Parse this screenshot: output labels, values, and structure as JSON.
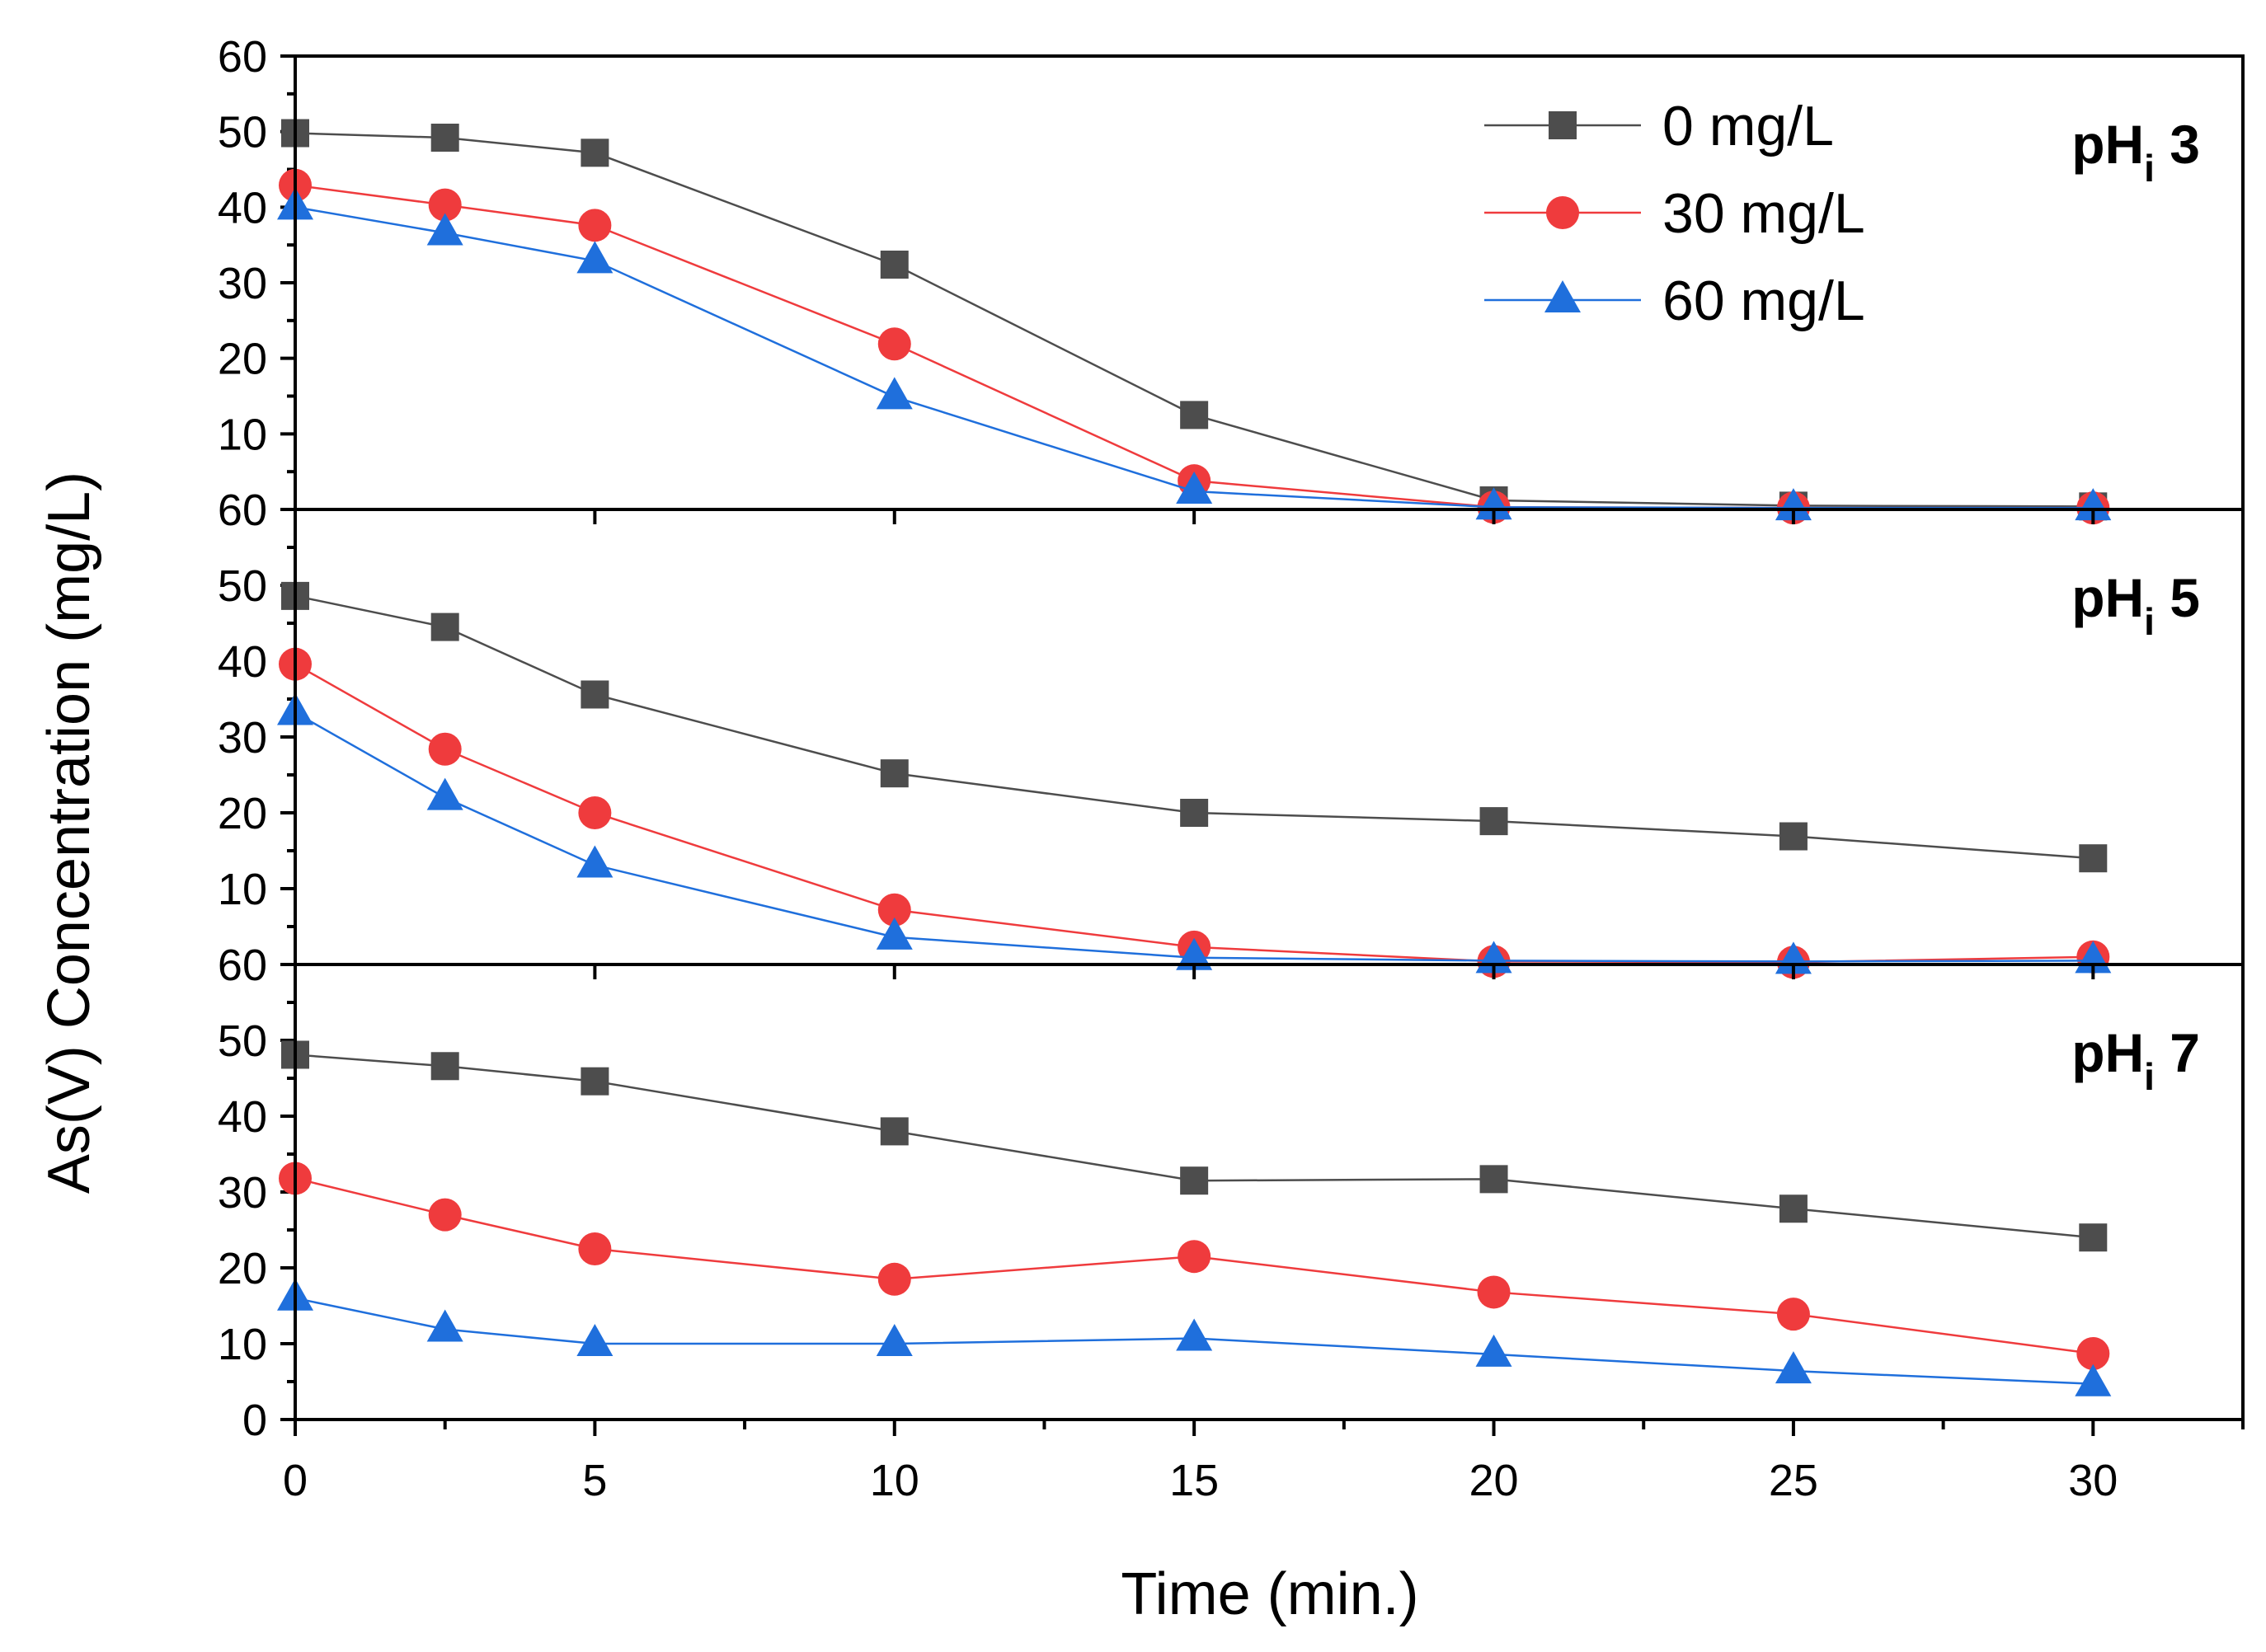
{
  "chart_data": {
    "type": "line",
    "xlabel": "Time (min.)",
    "ylabel": "As(V) Concentration (mg/L)",
    "xlim": [
      0,
      32.5
    ],
    "ylim": [
      0,
      60
    ],
    "x": [
      0,
      2.5,
      5,
      10,
      15,
      20,
      25,
      30
    ],
    "x_ticks": [
      "0",
      "5",
      "10",
      "15",
      "20",
      "25",
      "30"
    ],
    "y_ticks": [
      "0",
      "10",
      "20",
      "30",
      "40",
      "50",
      "60"
    ],
    "colors": {
      "s0": "#4d4d4d",
      "s30": "#ef3b3d",
      "s60": "#1f6fdc"
    },
    "legend": [
      "0 mg/L",
      "30 mg/L",
      "60 mg/L"
    ],
    "panels": [
      {
        "label_main": "pH",
        "label_sub": "i",
        "label_val": " 3",
        "series": [
          {
            "name": "0 mg/L",
            "values": [
              49.8,
              49.2,
              47.2,
              32.4,
              12.5,
              1.2,
              0.5,
              0.4
            ]
          },
          {
            "name": "30 mg/L",
            "values": [
              42.9,
              40.3,
              37.6,
              21.9,
              3.8,
              0.3,
              0.2,
              0.2
            ]
          },
          {
            "name": "60 mg/L",
            "values": [
              40.0,
              36.6,
              32.9,
              14.9,
              2.4,
              0.3,
              0.2,
              0.2
            ]
          }
        ]
      },
      {
        "label_main": "pH",
        "label_sub": "i",
        "label_val": " 5",
        "series": [
          {
            "name": "0 mg/L",
            "values": [
              48.6,
              44.5,
              35.6,
              25.2,
              20.0,
              18.9,
              16.9,
              14.0
            ]
          },
          {
            "name": "30 mg/L",
            "values": [
              39.6,
              28.4,
              20.0,
              7.2,
              2.3,
              0.4,
              0.3,
              1.0
            ]
          },
          {
            "name": "60 mg/L",
            "values": [
              33.2,
              22.0,
              13.1,
              3.6,
              0.9,
              0.5,
              0.4,
              0.5
            ]
          }
        ]
      },
      {
        "label_main": "pH",
        "label_sub": "i",
        "label_val": " 7",
        "series": [
          {
            "name": "0 mg/L",
            "values": [
              48.1,
              46.6,
              44.6,
              38.0,
              31.5,
              31.7,
              27.8,
              24.0
            ]
          },
          {
            "name": "30 mg/L",
            "values": [
              31.8,
              27.0,
              22.5,
              18.5,
              21.5,
              16.8,
              13.9,
              8.7
            ]
          },
          {
            "name": "60 mg/L",
            "values": [
              16.0,
              11.9,
              10.0,
              10.0,
              10.7,
              8.6,
              6.4,
              4.7
            ]
          }
        ]
      }
    ]
  }
}
